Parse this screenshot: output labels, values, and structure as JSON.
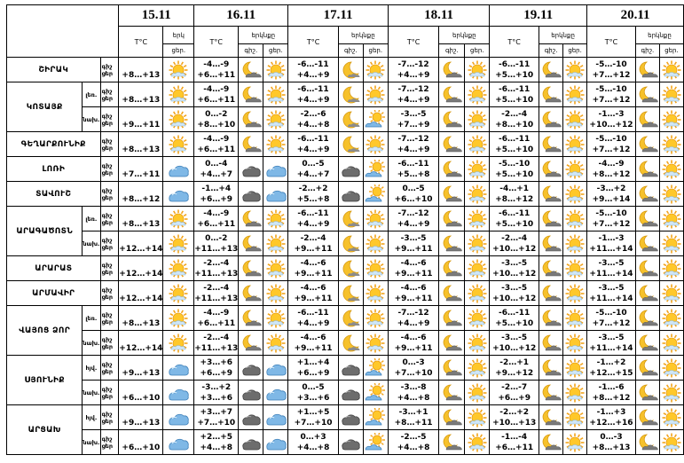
{
  "header": {
    "dates": [
      "15.11",
      "16.11",
      "17.11",
      "18.11",
      "19.11",
      "20.11"
    ],
    "temp_label": "T°C",
    "sky_label": "երկնքը",
    "sky_label_short": "երկ",
    "night_label": "գիշ.",
    "day_label": "ցեր."
  },
  "row_labels": {
    "night": "գիշ",
    "day": "ցեր"
  },
  "regions": [
    {
      "name": "ՇԻՐԱԿ",
      "parts": [
        {
          "label": "",
          "days": [
            {
              "n": "",
              "d": "+8…+13",
              "ni": "sun",
              "di": "sun"
            },
            {
              "n": "-4…-9",
              "d": "+6…+11",
              "ni": "moon_cloud",
              "di": "sun"
            },
            {
              "n": "-6…-11",
              "d": "+4…+9",
              "ni": "moon",
              "di": "sun"
            },
            {
              "n": "-7…-12",
              "d": "+4…+9",
              "ni": "moon_cloud",
              "di": "sun"
            },
            {
              "n": "-6…-11",
              "d": "+5…+10",
              "ni": "moon_cloud",
              "di": "sun"
            },
            {
              "n": "-5…-10",
              "d": "+7…+12",
              "ni": "moon_cloud",
              "di": "sun"
            }
          ]
        }
      ]
    },
    {
      "name": "ԿՈՏԱՅՔ",
      "parts": [
        {
          "label": "լեռ.",
          "days": [
            {
              "n": "",
              "d": "+8…+13",
              "ni": "sun",
              "di": "sun"
            },
            {
              "n": "-4…-9",
              "d": "+6…+11",
              "ni": "moon_cloud",
              "di": "sun"
            },
            {
              "n": "-6…-11",
              "d": "+4…+9",
              "ni": "moon",
              "di": "sun"
            },
            {
              "n": "-7…-12",
              "d": "+4…+9",
              "ni": "moon_cloud",
              "di": "sun"
            },
            {
              "n": "-6…-11",
              "d": "+5…+10",
              "ni": "moon_cloud",
              "di": "sun"
            },
            {
              "n": "-5…-10",
              "d": "+7…+12",
              "ni": "moon_cloud",
              "di": "sun"
            }
          ]
        },
        {
          "label": "նախ.",
          "days": [
            {
              "n": "",
              "d": "+9…+11",
              "ni": "sun",
              "di": "sun"
            },
            {
              "n": "0…-2",
              "d": "+8…+10",
              "ni": "moon_cloud",
              "di": "sun"
            },
            {
              "n": "-2…-6",
              "d": "+4…+8",
              "ni": "moon",
              "di": "sun_cloud"
            },
            {
              "n": "-3…-5",
              "d": "+7…+9",
              "ni": "moon_cloud",
              "di": "sun"
            },
            {
              "n": "-2…-4",
              "d": "+8…+10",
              "ni": "moon_cloud",
              "di": "sun"
            },
            {
              "n": "-1…-3",
              "d": "+10…+12",
              "ni": "moon_cloud",
              "di": "sun"
            }
          ]
        }
      ]
    },
    {
      "name": "ԳԵՂԱՐՔՈՒՆԻՔ",
      "parts": [
        {
          "label": "",
          "days": [
            {
              "n": "",
              "d": "+8…+13",
              "ni": "sun",
              "di": "sun"
            },
            {
              "n": "-4…-9",
              "d": "+6…+11",
              "ni": "moon_cloud",
              "di": "sun"
            },
            {
              "n": "-6…-11",
              "d": "+4…+9",
              "ni": "moon",
              "di": "sun"
            },
            {
              "n": "-7…-12",
              "d": "+4…+9",
              "ni": "moon_cloud",
              "di": "sun"
            },
            {
              "n": "-6…-11",
              "d": "+5…+10",
              "ni": "moon_cloud",
              "di": "sun"
            },
            {
              "n": "-5…-10",
              "d": "+7…+12",
              "ni": "moon_cloud",
              "di": "sun"
            }
          ]
        }
      ]
    },
    {
      "name": "ԼՈՌԻ",
      "parts": [
        {
          "label": "",
          "days": [
            {
              "n": "",
              "d": "+7…+11",
              "ni": "cloud",
              "di": "cloud"
            },
            {
              "n": "0…-4",
              "d": "+4…+7",
              "ni": "cloud_dark",
              "di": "cloud"
            },
            {
              "n": "0…-5",
              "d": "+4…+7",
              "ni": "cloud_dark",
              "di": "sun_cloud"
            },
            {
              "n": "-6…-11",
              "d": "+5…+8",
              "ni": "moon_cloud",
              "di": "sun"
            },
            {
              "n": "-5…-10",
              "d": "+5…+10",
              "ni": "moon_cloud",
              "di": "sun"
            },
            {
              "n": "-4…-9",
              "d": "+8…+12",
              "ni": "moon_cloud",
              "di": "sun"
            }
          ]
        }
      ]
    },
    {
      "name": "ՏԱՎՈՒՇ",
      "parts": [
        {
          "label": "",
          "days": [
            {
              "n": "",
              "d": "+8…+12",
              "ni": "cloud",
              "di": "cloud"
            },
            {
              "n": "-1…+4",
              "d": "+6…+9",
              "ni": "cloud_dark",
              "di": "cloud"
            },
            {
              "n": "-2…+2",
              "d": "+5…+8",
              "ni": "cloud_dark",
              "di": "sun_cloud"
            },
            {
              "n": "0…-5",
              "d": "+6…+10",
              "ni": "moon_cloud",
              "di": "sun"
            },
            {
              "n": "-4…+1",
              "d": "+8…+12",
              "ni": "moon_cloud",
              "di": "sun"
            },
            {
              "n": "-3…+2",
              "d": "+9…+14",
              "ni": "moon_cloud",
              "di": "sun"
            }
          ]
        }
      ]
    },
    {
      "name": "ԱՐԱԳԱԾՈՏՆ",
      "parts": [
        {
          "label": "լեռ.",
          "days": [
            {
              "n": "",
              "d": "+8…+13",
              "ni": "sun",
              "di": "sun"
            },
            {
              "n": "-4…-9",
              "d": "+6…+11",
              "ni": "moon_cloud",
              "di": "sun"
            },
            {
              "n": "-6…-11",
              "d": "+4…+9",
              "ni": "moon",
              "di": "sun"
            },
            {
              "n": "-7…-12",
              "d": "+4…+9",
              "ni": "moon_cloud",
              "di": "sun"
            },
            {
              "n": "-6…-11",
              "d": "+5…+10",
              "ni": "moon_cloud",
              "di": "sun"
            },
            {
              "n": "-5…-10",
              "d": "+7…+12",
              "ni": "moon_cloud",
              "di": "sun"
            }
          ]
        },
        {
          "label": "նախ.",
          "days": [
            {
              "n": "",
              "d": "+12…+14",
              "ni": "sun",
              "di": "sun"
            },
            {
              "n": "0…-2",
              "d": "+11…+13",
              "ni": "moon_cloud",
              "di": "sun"
            },
            {
              "n": "-2…-4",
              "d": "+9…+11",
              "ni": "moon",
              "di": "sun"
            },
            {
              "n": "-3…-5",
              "d": "+9…+11",
              "ni": "moon_cloud",
              "di": "sun"
            },
            {
              "n": "-2…-4",
              "d": "+10…+12",
              "ni": "moon_cloud",
              "di": "sun"
            },
            {
              "n": "-1…-3",
              "d": "+11…+14",
              "ni": "moon_cloud",
              "di": "sun"
            }
          ]
        }
      ]
    },
    {
      "name": "ԱՐԱՐԱՏ",
      "parts": [
        {
          "label": "",
          "days": [
            {
              "n": "",
              "d": "+12…+14",
              "ni": "sun",
              "di": "sun"
            },
            {
              "n": "-2…-4",
              "d": "+11…+13",
              "ni": "moon_cloud",
              "di": "sun"
            },
            {
              "n": "-4…-6",
              "d": "+9…+11",
              "ni": "moon",
              "di": "sun"
            },
            {
              "n": "-4…-6",
              "d": "+9…+11",
              "ni": "moon_cloud",
              "di": "sun"
            },
            {
              "n": "-3…-5",
              "d": "+10…+12",
              "ni": "moon_cloud",
              "di": "sun"
            },
            {
              "n": "-3…-5",
              "d": "+11…+14",
              "ni": "moon_cloud",
              "di": "sun"
            }
          ]
        }
      ]
    },
    {
      "name": "ԱՐՄԱՎԻՐ",
      "parts": [
        {
          "label": "",
          "days": [
            {
              "n": "",
              "d": "+12…+14",
              "ni": "sun",
              "di": "sun"
            },
            {
              "n": "-2…-4",
              "d": "+11…+13",
              "ni": "moon_cloud",
              "di": "sun"
            },
            {
              "n": "-4…-6",
              "d": "+9…+11",
              "ni": "moon",
              "di": "sun"
            },
            {
              "n": "-4…-6",
              "d": "+9…+11",
              "ni": "moon_cloud",
              "di": "sun"
            },
            {
              "n": "-3…-5",
              "d": "+10…+12",
              "ni": "moon_cloud",
              "di": "sun"
            },
            {
              "n": "-3…-5",
              "d": "+11…+14",
              "ni": "moon_cloud",
              "di": "sun"
            }
          ]
        }
      ]
    },
    {
      "name": "ՎԱՅՈՑ ՁՈՐ",
      "parts": [
        {
          "label": "լեռ.",
          "days": [
            {
              "n": "",
              "d": "+8…+13",
              "ni": "sun",
              "di": "sun"
            },
            {
              "n": "-4…-9",
              "d": "+6…+11",
              "ni": "moon_cloud",
              "di": "sun"
            },
            {
              "n": "-6…-11",
              "d": "+4…+9",
              "ni": "moon",
              "di": "sun"
            },
            {
              "n": "-7…-12",
              "d": "+4…+9",
              "ni": "moon_cloud",
              "di": "sun"
            },
            {
              "n": "-6…-11",
              "d": "+5…+10",
              "ni": "moon_cloud",
              "di": "sun"
            },
            {
              "n": "-5…-10",
              "d": "+7…+12",
              "ni": "moon_cloud",
              "di": "sun"
            }
          ]
        },
        {
          "label": "նախ.",
          "days": [
            {
              "n": "",
              "d": "+12…+14",
              "ni": "sun",
              "di": "sun"
            },
            {
              "n": "-2…-4",
              "d": "+11…+13",
              "ni": "moon_cloud",
              "di": "sun"
            },
            {
              "n": "-4…-6",
              "d": "+9…+11",
              "ni": "moon",
              "di": "sun"
            },
            {
              "n": "-4…-6",
              "d": "+9…+11",
              "ni": "moon_cloud",
              "di": "sun"
            },
            {
              "n": "-3…-5",
              "d": "+10…+12",
              "ni": "moon_cloud",
              "di": "sun"
            },
            {
              "n": "-3…-5",
              "d": "+11…+14",
              "ni": "moon_cloud",
              "di": "sun"
            }
          ]
        }
      ]
    },
    {
      "name": "ՍՅՈՒՆԻՔ",
      "parts": [
        {
          "label": "հյվ.",
          "days": [
            {
              "n": "",
              "d": "+9…+13",
              "ni": "cloud",
              "di": "cloud"
            },
            {
              "n": "+3…+6",
              "d": "+6…+9",
              "ni": "cloud_dark",
              "di": "cloud"
            },
            {
              "n": "+1…+4",
              "d": "+6…+9",
              "ni": "cloud_dark",
              "di": "sun_cloud"
            },
            {
              "n": "0…-3",
              "d": "+7…+10",
              "ni": "moon_cloud",
              "di": "sun"
            },
            {
              "n": "-2…+1",
              "d": "+9…+12",
              "ni": "moon_cloud",
              "di": "sun"
            },
            {
              "n": "-1…+2",
              "d": "+12…+15",
              "ni": "moon_cloud",
              "di": "sun"
            }
          ]
        },
        {
          "label": "նախ.",
          "days": [
            {
              "n": "",
              "d": "+6…+10",
              "ni": "cloud",
              "di": "cloud"
            },
            {
              "n": "-3…+2",
              "d": "+3…+6",
              "ni": "cloud_dark",
              "di": "cloud"
            },
            {
              "n": "0…-5",
              "d": "+3…+6",
              "ni": "cloud_dark",
              "di": "sun_cloud"
            },
            {
              "n": "-3…-8",
              "d": "+4…+8",
              "ni": "moon_cloud",
              "di": "sun"
            },
            {
              "n": "-2…-7",
              "d": "+6…+9",
              "ni": "moon_cloud",
              "di": "sun"
            },
            {
              "n": "-1…-6",
              "d": "+8…+12",
              "ni": "moon_cloud",
              "di": "sun"
            }
          ]
        }
      ]
    },
    {
      "name": "ԱՐՑԱԽ",
      "parts": [
        {
          "label": "հյվ.",
          "days": [
            {
              "n": "",
              "d": "+9…+13",
              "ni": "cloud",
              "di": "cloud"
            },
            {
              "n": "+3…+7",
              "d": "+7…+10",
              "ni": "cloud_dark",
              "di": "cloud"
            },
            {
              "n": "+1…+5",
              "d": "+7…+10",
              "ni": "cloud_dark",
              "di": "sun_cloud"
            },
            {
              "n": "-3…+1",
              "d": "+8…+11",
              "ni": "moon_cloud",
              "di": "sun"
            },
            {
              "n": "-2…+2",
              "d": "+10…+13",
              "ni": "moon_cloud",
              "di": "sun"
            },
            {
              "n": "-1…+3",
              "d": "+12…+16",
              "ni": "moon_cloud",
              "di": "sun"
            }
          ]
        },
        {
          "label": "նախ.",
          "days": [
            {
              "n": "",
              "d": "+6…+10",
              "ni": "cloud",
              "di": "cloud"
            },
            {
              "n": "+2…+5",
              "d": "+4…+8",
              "ni": "cloud_dark",
              "di": "cloud"
            },
            {
              "n": "0…+3",
              "d": "+4…+8",
              "ni": "cloud_dark",
              "di": "sun_cloud"
            },
            {
              "n": "-2…-5",
              "d": "+4…+8",
              "ni": "moon_cloud",
              "di": "sun"
            },
            {
              "n": "-1…-4",
              "d": "+6…+11",
              "ni": "moon_cloud",
              "di": "sun"
            },
            {
              "n": "0…-3",
              "d": "+8…+13",
              "ni": "moon_cloud",
              "di": "sun"
            }
          ]
        }
      ]
    }
  ]
}
